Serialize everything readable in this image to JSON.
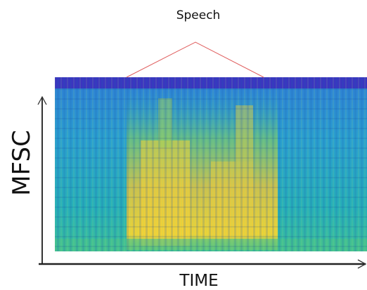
{
  "annotation": "Speech",
  "y_axis_label": "MFSC",
  "x_axis_label": "TIME"
}
